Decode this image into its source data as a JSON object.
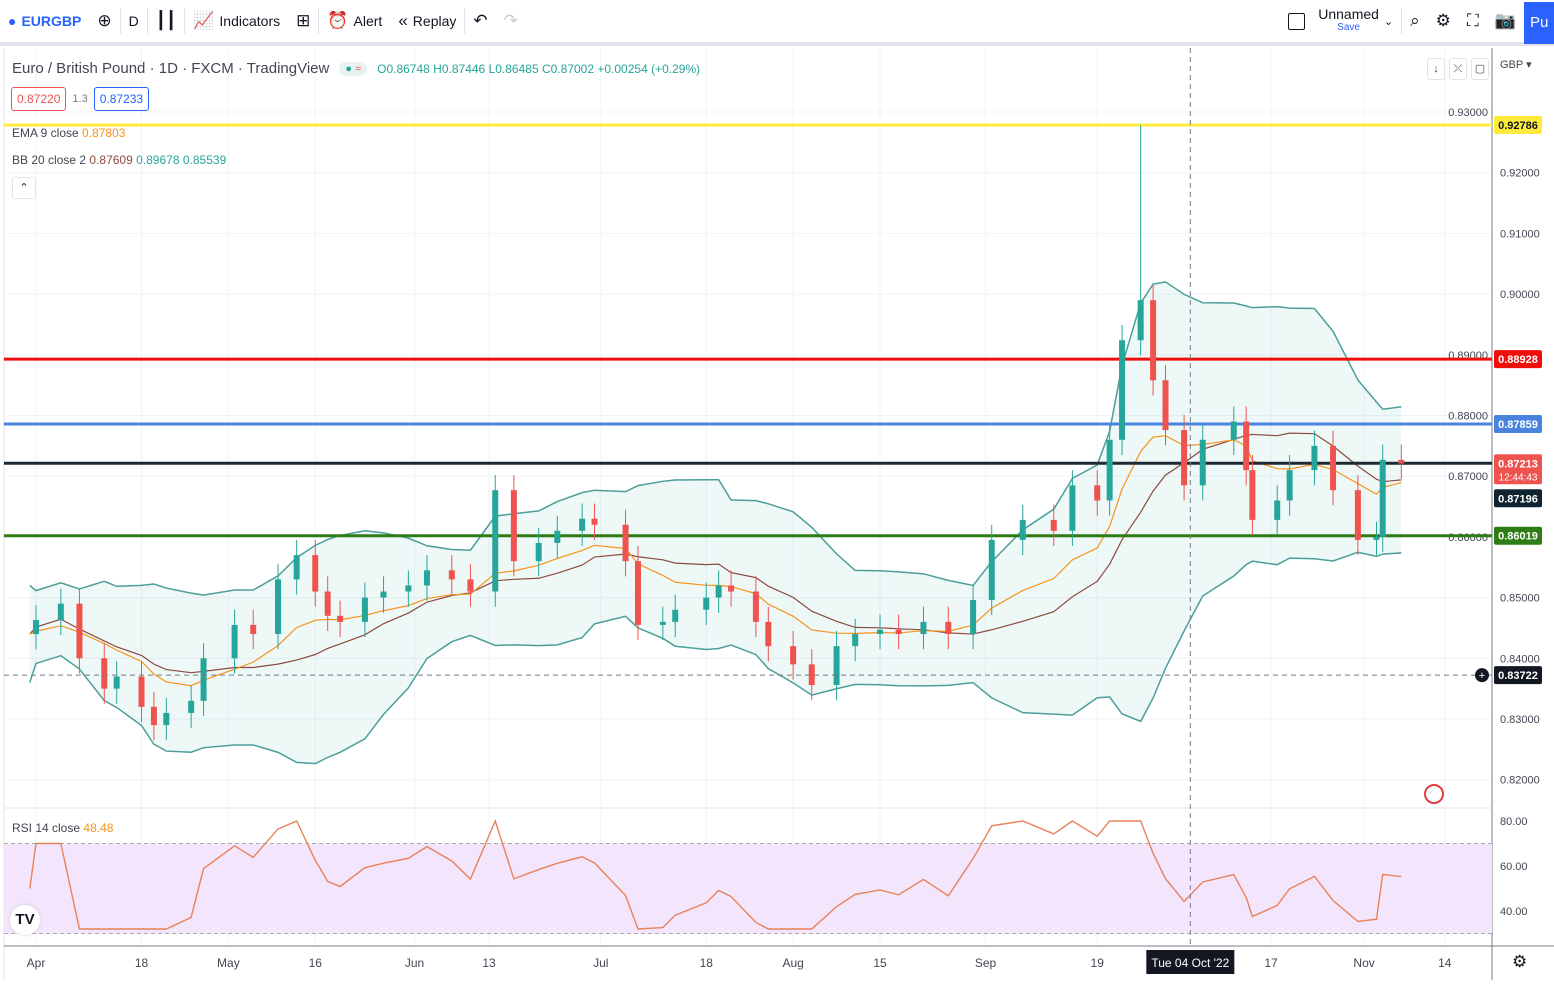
{
  "toolbar": {
    "symbol": "EURGBP",
    "interval": "D",
    "indicators": "Indicators",
    "alert": "Alert",
    "replay": "Replay",
    "layout_name": "Unnamed",
    "save": "Save",
    "publish": "Pu",
    "icons": [
      "add-symbol-icon",
      "candles-icon",
      "indicators-icon",
      "templates-icon",
      "alert-icon",
      "replay-icon",
      "undo-icon",
      "redo-icon",
      "search-icon",
      "gear-icon",
      "fullscreen-icon",
      "camera-icon"
    ]
  },
  "legend": {
    "title": "Euro / British Pound · 1D · FXCM · TradingView",
    "open": "O0.86748",
    "high": "H0.87446",
    "low": "L0.86485",
    "close": "C0.87002",
    "change": "+0.00254 (+0.29%)",
    "bid": "0.87220",
    "spread": "1.3",
    "ask": "0.87233",
    "ema": {
      "label": "EMA 9 close",
      "value": "0.87803"
    },
    "bb": {
      "label": "BB 20 close 2",
      "basis": "0.87609",
      "upper": "0.89678",
      "lower": "0.85539"
    },
    "rsi": {
      "label": "RSI 14 close",
      "value": "48.48"
    }
  },
  "currency": "GBP",
  "crosshair": {
    "date_label": "Tue 04 Oct '22",
    "price_label": "0.83722",
    "price": 0.83722,
    "date": "2022-10-04"
  },
  "colors": {
    "up": "#26a69a",
    "down": "#ef5350",
    "ema": "#f7931a",
    "bb_basis": "#8d4a3f",
    "bb_band": "#4b9e9a",
    "rsi": "#e8825a"
  },
  "chart_data": {
    "type": "candlestick",
    "price_axis": {
      "ylim": [
        0.815,
        0.935
      ],
      "ticks": [
        "0.93000",
        "0.92000",
        "0.91000",
        "0.90000",
        "0.89000",
        "0.88000",
        "0.87000",
        "0.86000",
        "0.85000",
        "0.84000",
        "0.83000",
        "0.82000"
      ]
    },
    "time_axis": {
      "ticks": [
        [
          "2022-04-01",
          "Apr"
        ],
        [
          "2022-04-18",
          "18"
        ],
        [
          "2022-05-02",
          "May"
        ],
        [
          "2022-05-16",
          "16"
        ],
        [
          "2022-06-01",
          "Jun"
        ],
        [
          "2022-06-13",
          "13"
        ],
        [
          "2022-07-01",
          "Jul"
        ],
        [
          "2022-07-18",
          "18"
        ],
        [
          "2022-08-01",
          "Aug"
        ],
        [
          "2022-08-15",
          "15"
        ],
        [
          "2022-09-01",
          "Sep"
        ],
        [
          "2022-09-19",
          "19"
        ],
        [
          "2022-10-17",
          "17"
        ],
        [
          "2022-11-01",
          "Nov"
        ],
        [
          "2022-11-14",
          "14"
        ]
      ]
    },
    "rsi_axis": {
      "ylim": [
        25,
        85
      ],
      "ticks": [
        "80.00",
        "60.00",
        "40.00"
      ],
      "band": [
        30,
        70
      ]
    },
    "closes": [
      [
        "2022-03-31",
        0.844
      ],
      [
        "2022-04-01",
        0.8463
      ],
      [
        "2022-04-05",
        0.849
      ],
      [
        "2022-04-08",
        0.84
      ],
      [
        "2022-04-12",
        0.835
      ],
      [
        "2022-04-14",
        0.837
      ],
      [
        "2022-04-18",
        0.832
      ],
      [
        "2022-04-20",
        0.829
      ],
      [
        "2022-04-22",
        0.831
      ],
      [
        "2022-04-26",
        0.833
      ],
      [
        "2022-04-28",
        0.84
      ],
      [
        "2022-05-03",
        0.8455
      ],
      [
        "2022-05-06",
        0.844
      ],
      [
        "2022-05-10",
        0.853
      ],
      [
        "2022-05-13",
        0.857
      ],
      [
        "2022-05-16",
        0.851
      ],
      [
        "2022-05-18",
        0.847
      ],
      [
        "2022-05-20",
        0.846
      ],
      [
        "2022-05-24",
        0.85
      ],
      [
        "2022-05-27",
        0.851
      ],
      [
        "2022-05-31",
        0.852
      ],
      [
        "2022-06-03",
        0.8545
      ],
      [
        "2022-06-07",
        0.853
      ],
      [
        "2022-06-10",
        0.851
      ],
      [
        "2022-06-14",
        0.8677
      ],
      [
        "2022-06-17",
        0.856
      ],
      [
        "2022-06-21",
        0.859
      ],
      [
        "2022-06-24",
        0.861
      ],
      [
        "2022-06-28",
        0.863
      ],
      [
        "2022-06-30",
        0.862
      ],
      [
        "2022-07-05",
        0.856
      ],
      [
        "2022-07-07",
        0.8455
      ],
      [
        "2022-07-11",
        0.846
      ],
      [
        "2022-07-13",
        0.848
      ],
      [
        "2022-07-18",
        0.85
      ],
      [
        "2022-07-20",
        0.852
      ],
      [
        "2022-07-22",
        0.851
      ],
      [
        "2022-07-26",
        0.846
      ],
      [
        "2022-07-28",
        0.842
      ],
      [
        "2022-08-01",
        0.839
      ],
      [
        "2022-08-04",
        0.8356
      ],
      [
        "2022-08-08",
        0.842
      ],
      [
        "2022-08-11",
        0.844
      ],
      [
        "2022-08-15",
        0.8447
      ],
      [
        "2022-08-18",
        0.844
      ],
      [
        "2022-08-22",
        0.846
      ],
      [
        "2022-08-26",
        0.844
      ],
      [
        "2022-08-30",
        0.8496
      ],
      [
        "2022-09-02",
        0.8595
      ],
      [
        "2022-09-07",
        0.8628
      ],
      [
        "2022-09-12",
        0.861
      ],
      [
        "2022-09-15",
        0.8685
      ],
      [
        "2022-09-19",
        0.866
      ],
      [
        "2022-09-21",
        0.876
      ],
      [
        "2022-09-23",
        0.8924
      ],
      [
        "2022-09-26",
        0.899
      ],
      [
        "2022-09-28",
        0.8858
      ],
      [
        "2022-09-30",
        0.8776
      ],
      [
        "2022-10-03",
        0.8685
      ],
      [
        "2022-10-06",
        0.876
      ],
      [
        "2022-10-11",
        0.879
      ],
      [
        "2022-10-13",
        0.871
      ],
      [
        "2022-10-14",
        0.8628
      ],
      [
        "2022-10-18",
        0.866
      ],
      [
        "2022-10-20",
        0.871
      ],
      [
        "2022-10-24",
        0.875
      ],
      [
        "2022-10-27",
        0.8677
      ],
      [
        "2022-10-31",
        0.8595
      ],
      [
        "2022-11-03",
        0.86
      ],
      [
        "2022-11-04",
        0.8727
      ],
      [
        "2022-11-07",
        0.8721
      ]
    ],
    "spike_high": {
      "date": "2022-09-26",
      "price": 0.92786
    },
    "horizontal_lines": [
      {
        "price": 0.92786,
        "label": "0.92786",
        "color": "#ffeb3b",
        "text": "#131722"
      },
      {
        "price": 0.88928,
        "label": "0.88928",
        "color": "#f20d0d",
        "text": "#ffffff"
      },
      {
        "price": 0.87859,
        "label": "0.87859",
        "color": "#4a82e0",
        "text": "#ffffff"
      },
      {
        "price": 0.87213,
        "label": "0.87213",
        "color": "#1e2a33",
        "text": "#ffffff"
      },
      {
        "price": 0.86019,
        "label": "0.86019",
        "color": "#2e7d14",
        "text": "#ffffff"
      }
    ],
    "last_price": {
      "label": "0.87213",
      "countdown": "12:44:43",
      "color": "#ef5350"
    },
    "prev_close": {
      "label": "0.87196",
      "color": "#0f2430"
    }
  }
}
